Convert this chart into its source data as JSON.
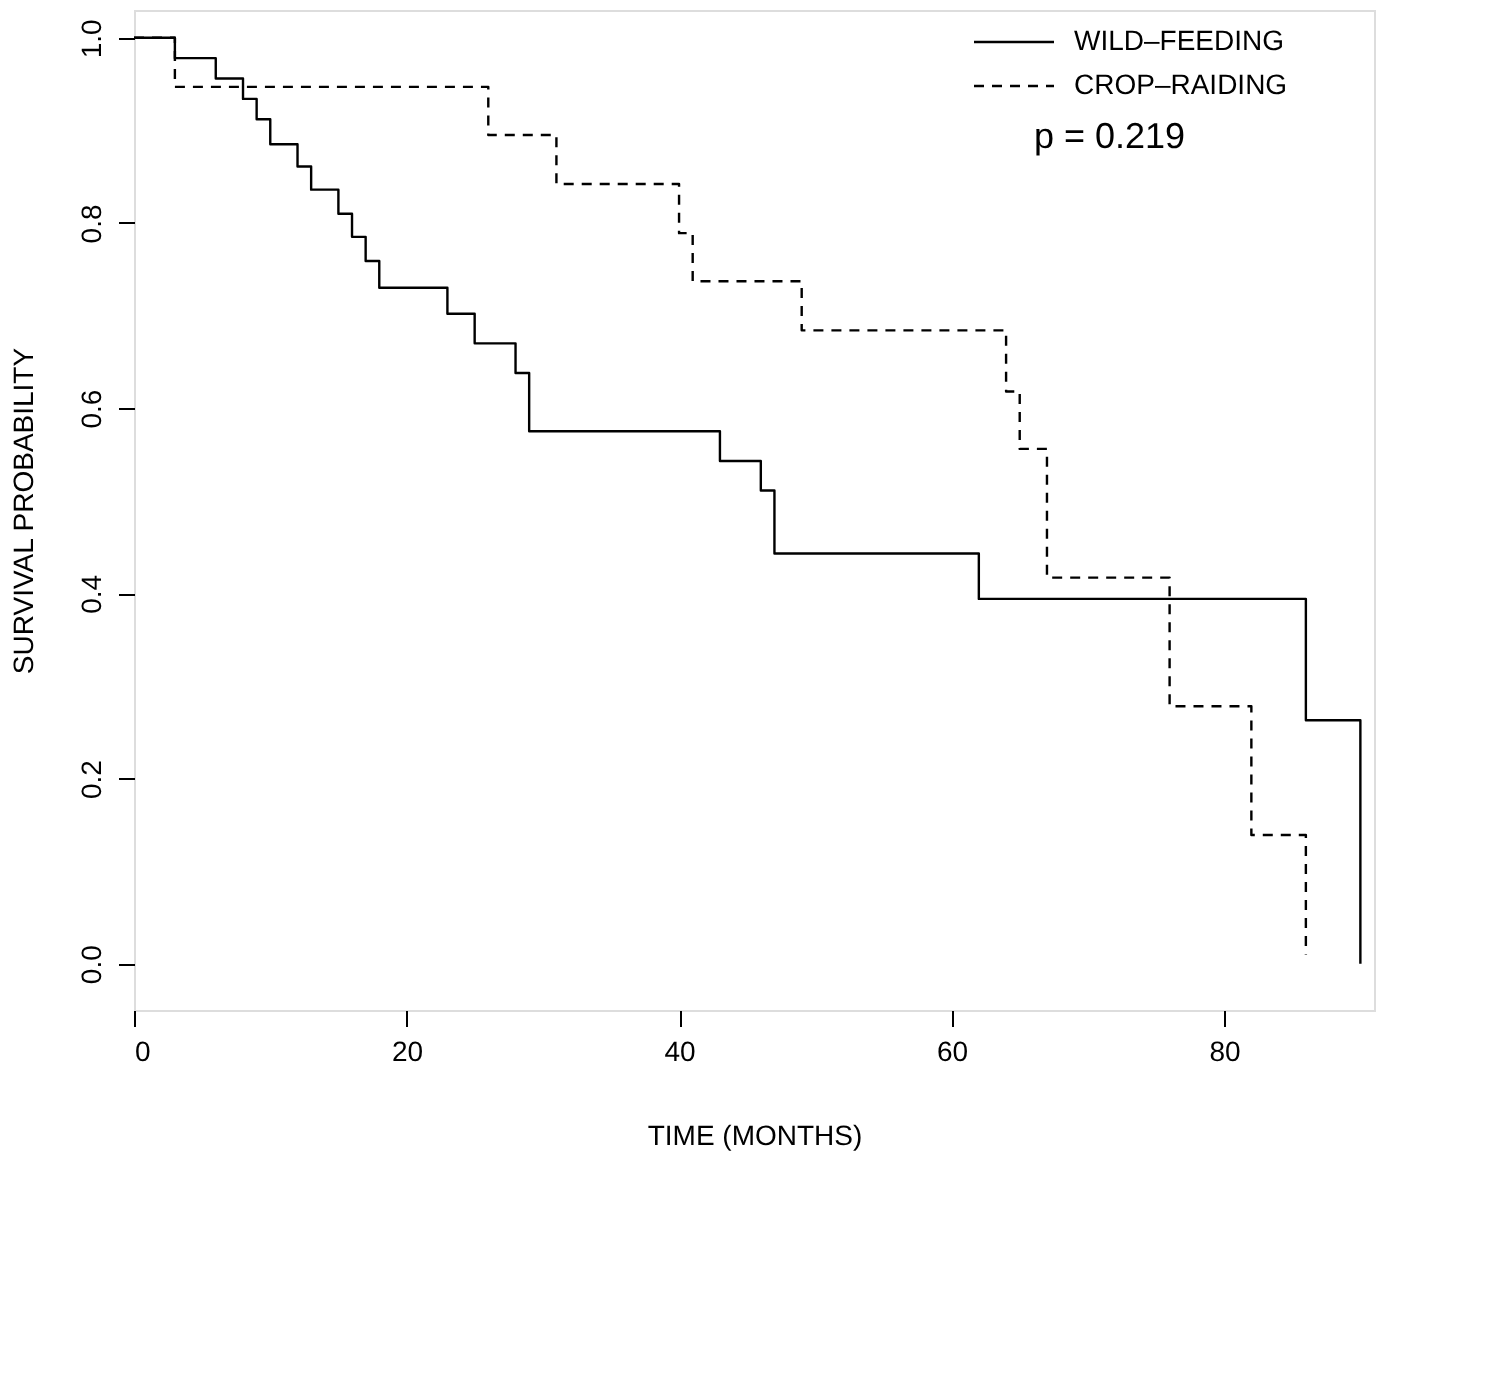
{
  "chart_data": {
    "type": "step",
    "xlabel": "TIME (MONTHS)",
    "ylabel": "SURVIVAL PROBABILITY",
    "xlim": [
      0,
      91
    ],
    "ylim": [
      -0.05,
      1.03
    ],
    "xticks": [
      0,
      20,
      40,
      60,
      80
    ],
    "yticks": [
      {
        "value": 0,
        "label": "0.0"
      },
      0.2,
      0.4,
      0.6,
      0.8,
      {
        "value": 1,
        "label": "1.0"
      }
    ],
    "grid": false,
    "legend": "top right",
    "marker": "none",
    "annotations": [
      "p = 0.219"
    ],
    "series": [
      {
        "name": "WILD–FEEDING",
        "color": "#000000",
        "line_style": "solid",
        "x": [
          0,
          3,
          6,
          8,
          9,
          10,
          12,
          13,
          15,
          16,
          17,
          18,
          23,
          25,
          28,
          29,
          43,
          46,
          47,
          62,
          86,
          90
        ],
        "values": [
          1.0,
          0.978,
          0.956,
          0.934,
          0.912,
          0.885,
          0.861,
          0.836,
          0.81,
          0.785,
          0.759,
          0.73,
          0.702,
          0.67,
          0.638,
          0.575,
          0.543,
          0.511,
          0.443,
          0.394,
          0.263,
          0.0
        ]
      },
      {
        "name": "CROP–RAIDING",
        "color": "#000000",
        "line_style": "dashed",
        "x": [
          0,
          3,
          26,
          31,
          40,
          41,
          49,
          64,
          65,
          67,
          76,
          82,
          86
        ],
        "values": [
          1.0,
          0.947,
          0.895,
          0.842,
          0.789,
          0.737,
          0.684,
          0.618,
          0.556,
          0.417,
          0.278,
          0.139,
          0.01
        ]
      }
    ]
  }
}
